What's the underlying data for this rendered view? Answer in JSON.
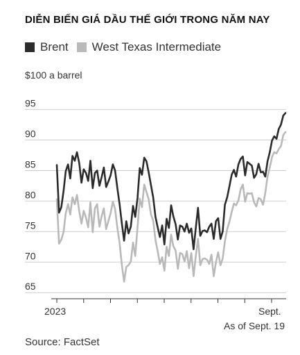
{
  "chart_data": {
    "type": "line",
    "title": "DIỄN BIẾN GIÁ DẦU THẾ GIỚI TRONG NĂM NAY",
    "ylabel": "$100 a barrel",
    "xlabel": "",
    "x_ticks": [
      "2023",
      "Sept."
    ],
    "note": "As of Sept. 19",
    "source": "Source: FactSet",
    "y_ticks": [
      95,
      90,
      85,
      80,
      75,
      70,
      65
    ],
    "ylim": [
      64,
      97
    ],
    "grid": true,
    "legend_position": "top-left",
    "series": [
      {
        "name": "Brent",
        "color": "#2b2b2b",
        "values": [
          85.9,
          78.1,
          79.0,
          81.6,
          84.9,
          86.0,
          83.7,
          87.4,
          86.6,
          88.0,
          86.2,
          83.0,
          85.2,
          84.6,
          83.3,
          86.6,
          82.1,
          84.6,
          85.0,
          82.5,
          83.9,
          85.5,
          82.3,
          83.2,
          84.2,
          86.0,
          85.0,
          82.1,
          79.5,
          76.4,
          73.5,
          76.7,
          74.7,
          75.8,
          79.2,
          77.4,
          80.5,
          85.4,
          84.3,
          87.1,
          86.5,
          84.7,
          82.6,
          80.6,
          77.4,
          75.7,
          74.1,
          76.0,
          72.9,
          77.1,
          75.6,
          79.3,
          77.5,
          76.2,
          73.7,
          76.0,
          75.8,
          75.0,
          76.3,
          74.8,
          75.5,
          72.1,
          75.6,
          78.9,
          74.3,
          75.1,
          75.2,
          74.9,
          75.8,
          76.3,
          73.8,
          76.7,
          77.2,
          73.8,
          75.0,
          79.4,
          80.6,
          82.4,
          84.3,
          85.1,
          84.0,
          86.0,
          86.9,
          87.3,
          84.2,
          86.4,
          86.1,
          85.8,
          83.8,
          84.4,
          86.1,
          84.7,
          84.8,
          84.0,
          86.5,
          88.0,
          89.9,
          90.6,
          90.2,
          91.8,
          92.5,
          94.0,
          94.4
        ]
      },
      {
        "name": "West Texas Intermediate",
        "color": "#b9b9b9",
        "values": [
          80.3,
          73.0,
          73.7,
          74.9,
          78.0,
          79.5,
          77.8,
          80.6,
          79.5,
          81.0,
          78.3,
          76.3,
          78.4,
          77.3,
          75.7,
          79.8,
          74.9,
          78.8,
          79.5,
          75.8,
          77.5,
          78.8,
          75.4,
          76.7,
          78.0,
          79.9,
          78.7,
          75.6,
          73.2,
          69.6,
          66.8,
          69.2,
          69.5,
          70.1,
          73.2,
          71.0,
          75.7,
          80.4,
          79.0,
          82.7,
          81.5,
          80.3,
          77.8,
          76.8,
          73.6,
          71.8,
          69.7,
          70.8,
          68.6,
          72.5,
          71.0,
          74.5,
          72.6,
          71.9,
          68.9,
          71.5,
          71.3,
          70.1,
          71.8,
          69.0,
          71.5,
          67.7,
          71.0,
          73.8,
          69.5,
          70.5,
          70.6,
          70.4,
          69.7,
          71.2,
          67.7,
          70.0,
          71.6,
          69.5,
          70.6,
          73.4,
          75.4,
          76.6,
          78.2,
          79.6,
          79.3,
          80.1,
          81.9,
          82.7,
          79.9,
          81.3,
          81.2,
          81.3,
          79.8,
          79.1,
          80.5,
          80.3,
          79.4,
          81.3,
          84.0,
          85.5,
          87.2,
          88.0,
          87.8,
          88.5,
          89.0,
          90.8,
          91.3
        ]
      }
    ]
  }
}
